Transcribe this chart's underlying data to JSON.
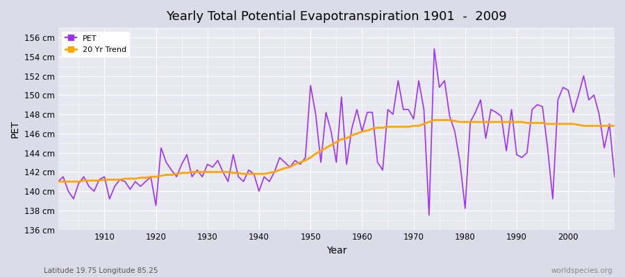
{
  "title": "Yearly Total Potential Evapotranspiration 1901  -  2009",
  "xlabel": "Year",
  "ylabel": "PET",
  "subtitle_left": "Latitude 19.75 Longitude 85.25",
  "subtitle_right": "worldspecies.org",
  "ylim": [
    136,
    157
  ],
  "yticks": [
    136,
    138,
    140,
    142,
    144,
    146,
    148,
    150,
    152,
    154,
    156
  ],
  "pet_color": "#9B30FF",
  "trend_color": "#FFA500",
  "bg_color": "#E8E8F0",
  "pet_years": [
    1901,
    1902,
    1903,
    1904,
    1905,
    1906,
    1907,
    1908,
    1909,
    1910,
    1911,
    1912,
    1913,
    1914,
    1915,
    1916,
    1917,
    1918,
    1919,
    1920,
    1921,
    1922,
    1923,
    1924,
    1925,
    1926,
    1927,
    1928,
    1929,
    1930,
    1931,
    1932,
    1933,
    1934,
    1935,
    1936,
    1937,
    1938,
    1939,
    1940,
    1941,
    1942,
    1943,
    1944,
    1945,
    1946,
    1947,
    1948,
    1949,
    1950,
    1951,
    1952,
    1953,
    1954,
    1955,
    1956,
    1957,
    1958,
    1959,
    1960,
    1961,
    1962,
    1963,
    1964,
    1965,
    1966,
    1967,
    1968,
    1969,
    1970,
    1971,
    1972,
    1973,
    1974,
    1975,
    1976,
    1977,
    1978,
    1979,
    1980,
    1981,
    1982,
    1983,
    1984,
    1985,
    1986,
    1987,
    1988,
    1989,
    1990,
    1991,
    1992,
    1993,
    1994,
    1995,
    1996,
    1997,
    1998,
    1999,
    2000,
    2001,
    2002,
    2003,
    2004,
    2005,
    2006,
    2007,
    2008,
    2009
  ],
  "pet_values": [
    141.0,
    141.5,
    140.0,
    139.2,
    140.8,
    141.5,
    140.5,
    140.0,
    141.2,
    141.5,
    139.2,
    140.5,
    141.2,
    141.0,
    140.2,
    141.0,
    140.5,
    141.0,
    141.5,
    138.5,
    144.5,
    143.0,
    142.2,
    141.5,
    142.8,
    143.8,
    141.5,
    142.2,
    141.5,
    142.8,
    142.5,
    143.2,
    142.0,
    141.0,
    143.8,
    141.5,
    141.0,
    142.2,
    141.8,
    140.0,
    141.5,
    141.0,
    142.0,
    143.5,
    143.0,
    142.5,
    143.2,
    142.8,
    143.5,
    151.0,
    148.0,
    143.0,
    148.2,
    146.2,
    143.0,
    149.8,
    142.8,
    146.5,
    148.5,
    146.2,
    148.2,
    148.2,
    143.0,
    142.2,
    148.5,
    148.0,
    151.5,
    148.5,
    148.5,
    147.5,
    151.5,
    148.5,
    137.5,
    154.8,
    150.8,
    151.5,
    147.8,
    146.2,
    143.0,
    138.2,
    147.2,
    148.2,
    149.5,
    145.5,
    148.5,
    148.2,
    147.8,
    144.2,
    148.5,
    143.8,
    143.5,
    144.0,
    148.5,
    149.0,
    148.8,
    144.5,
    139.2,
    149.5,
    150.8,
    150.5,
    148.2,
    150.0,
    152.0,
    149.5,
    150.0,
    148.0,
    144.5,
    147.0,
    141.5
  ],
  "trend_years": [
    1901,
    1902,
    1903,
    1904,
    1905,
    1906,
    1907,
    1908,
    1909,
    1910,
    1911,
    1912,
    1913,
    1914,
    1915,
    1916,
    1917,
    1918,
    1919,
    1920,
    1921,
    1922,
    1923,
    1924,
    1925,
    1926,
    1927,
    1928,
    1929,
    1930,
    1931,
    1932,
    1933,
    1934,
    1935,
    1936,
    1937,
    1938,
    1939,
    1940,
    1941,
    1942,
    1943,
    1944,
    1945,
    1946,
    1947,
    1948,
    1949,
    1950,
    1951,
    1952,
    1953,
    1954,
    1955,
    1956,
    1957,
    1958,
    1959,
    1960,
    1961,
    1962,
    1963,
    1964,
    1965,
    1966,
    1967,
    1968,
    1969,
    1970,
    1971,
    1972,
    1973,
    1974,
    1975,
    1976,
    1977,
    1978,
    1979,
    1980,
    1981,
    1982,
    1983,
    1984,
    1985,
    1986,
    1987,
    1988,
    1989,
    1990,
    1991,
    1992,
    1993,
    1994,
    1995,
    1996,
    1997,
    1998,
    1999,
    2000,
    2001,
    2002,
    2003,
    2004,
    2005,
    2006,
    2007,
    2008,
    2009
  ],
  "trend_values": [
    141.0,
    141.0,
    141.0,
    141.0,
    141.0,
    141.1,
    141.1,
    141.1,
    141.1,
    141.2,
    141.2,
    141.2,
    141.2,
    141.3,
    141.3,
    141.3,
    141.4,
    141.4,
    141.5,
    141.5,
    141.6,
    141.7,
    141.7,
    141.8,
    141.9,
    141.9,
    142.0,
    142.0,
    142.0,
    142.0,
    142.0,
    142.0,
    142.0,
    142.0,
    141.9,
    141.9,
    141.8,
    141.8,
    141.8,
    141.8,
    141.8,
    141.9,
    142.0,
    142.2,
    142.4,
    142.5,
    142.8,
    143.0,
    143.2,
    143.5,
    143.9,
    144.2,
    144.5,
    144.8,
    145.1,
    145.4,
    145.5,
    145.8,
    146.0,
    146.2,
    146.3,
    146.5,
    146.6,
    146.6,
    146.7,
    146.7,
    146.7,
    146.7,
    146.7,
    146.8,
    146.8,
    147.0,
    147.2,
    147.4,
    147.4,
    147.4,
    147.4,
    147.3,
    147.2,
    147.2,
    147.2,
    147.2,
    147.2,
    147.2,
    147.2,
    147.2,
    147.2,
    147.2,
    147.2,
    147.2,
    147.2,
    147.1,
    147.1,
    147.1,
    147.1,
    147.0,
    147.0,
    147.0,
    147.0,
    147.0,
    147.0,
    146.9,
    146.8,
    146.8,
    146.8,
    146.8,
    146.8,
    146.8,
    146.8
  ]
}
